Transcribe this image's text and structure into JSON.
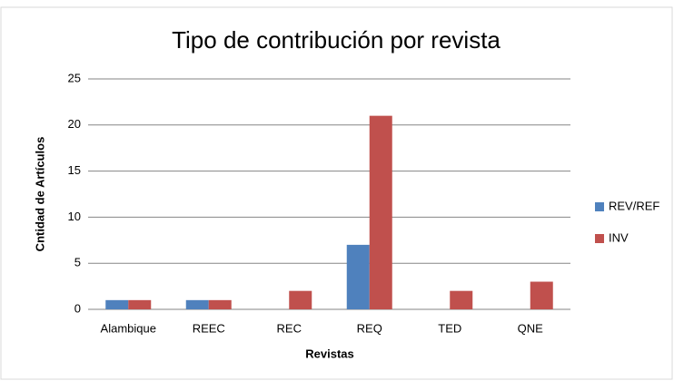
{
  "chart_data": {
    "type": "bar",
    "title": "Tipo de contribución por revista",
    "x_label": "Revistas",
    "y_label": "Cntidad de Artículos",
    "categories": [
      "Alambique",
      "REEC",
      "REC",
      "REQ",
      "TED",
      "QNE"
    ],
    "series": [
      {
        "name": "REV/REF",
        "color": "#4f81bd",
        "values": [
          1,
          1,
          0,
          7,
          0,
          0
        ]
      },
      {
        "name": "INV",
        "color": "#c0504d",
        "values": [
          1,
          1,
          2,
          21,
          2,
          3
        ]
      }
    ],
    "ylim": [
      0,
      25
    ],
    "yticks": [
      0,
      5,
      10,
      15,
      20,
      25
    ],
    "grid": true,
    "legend": "right"
  }
}
